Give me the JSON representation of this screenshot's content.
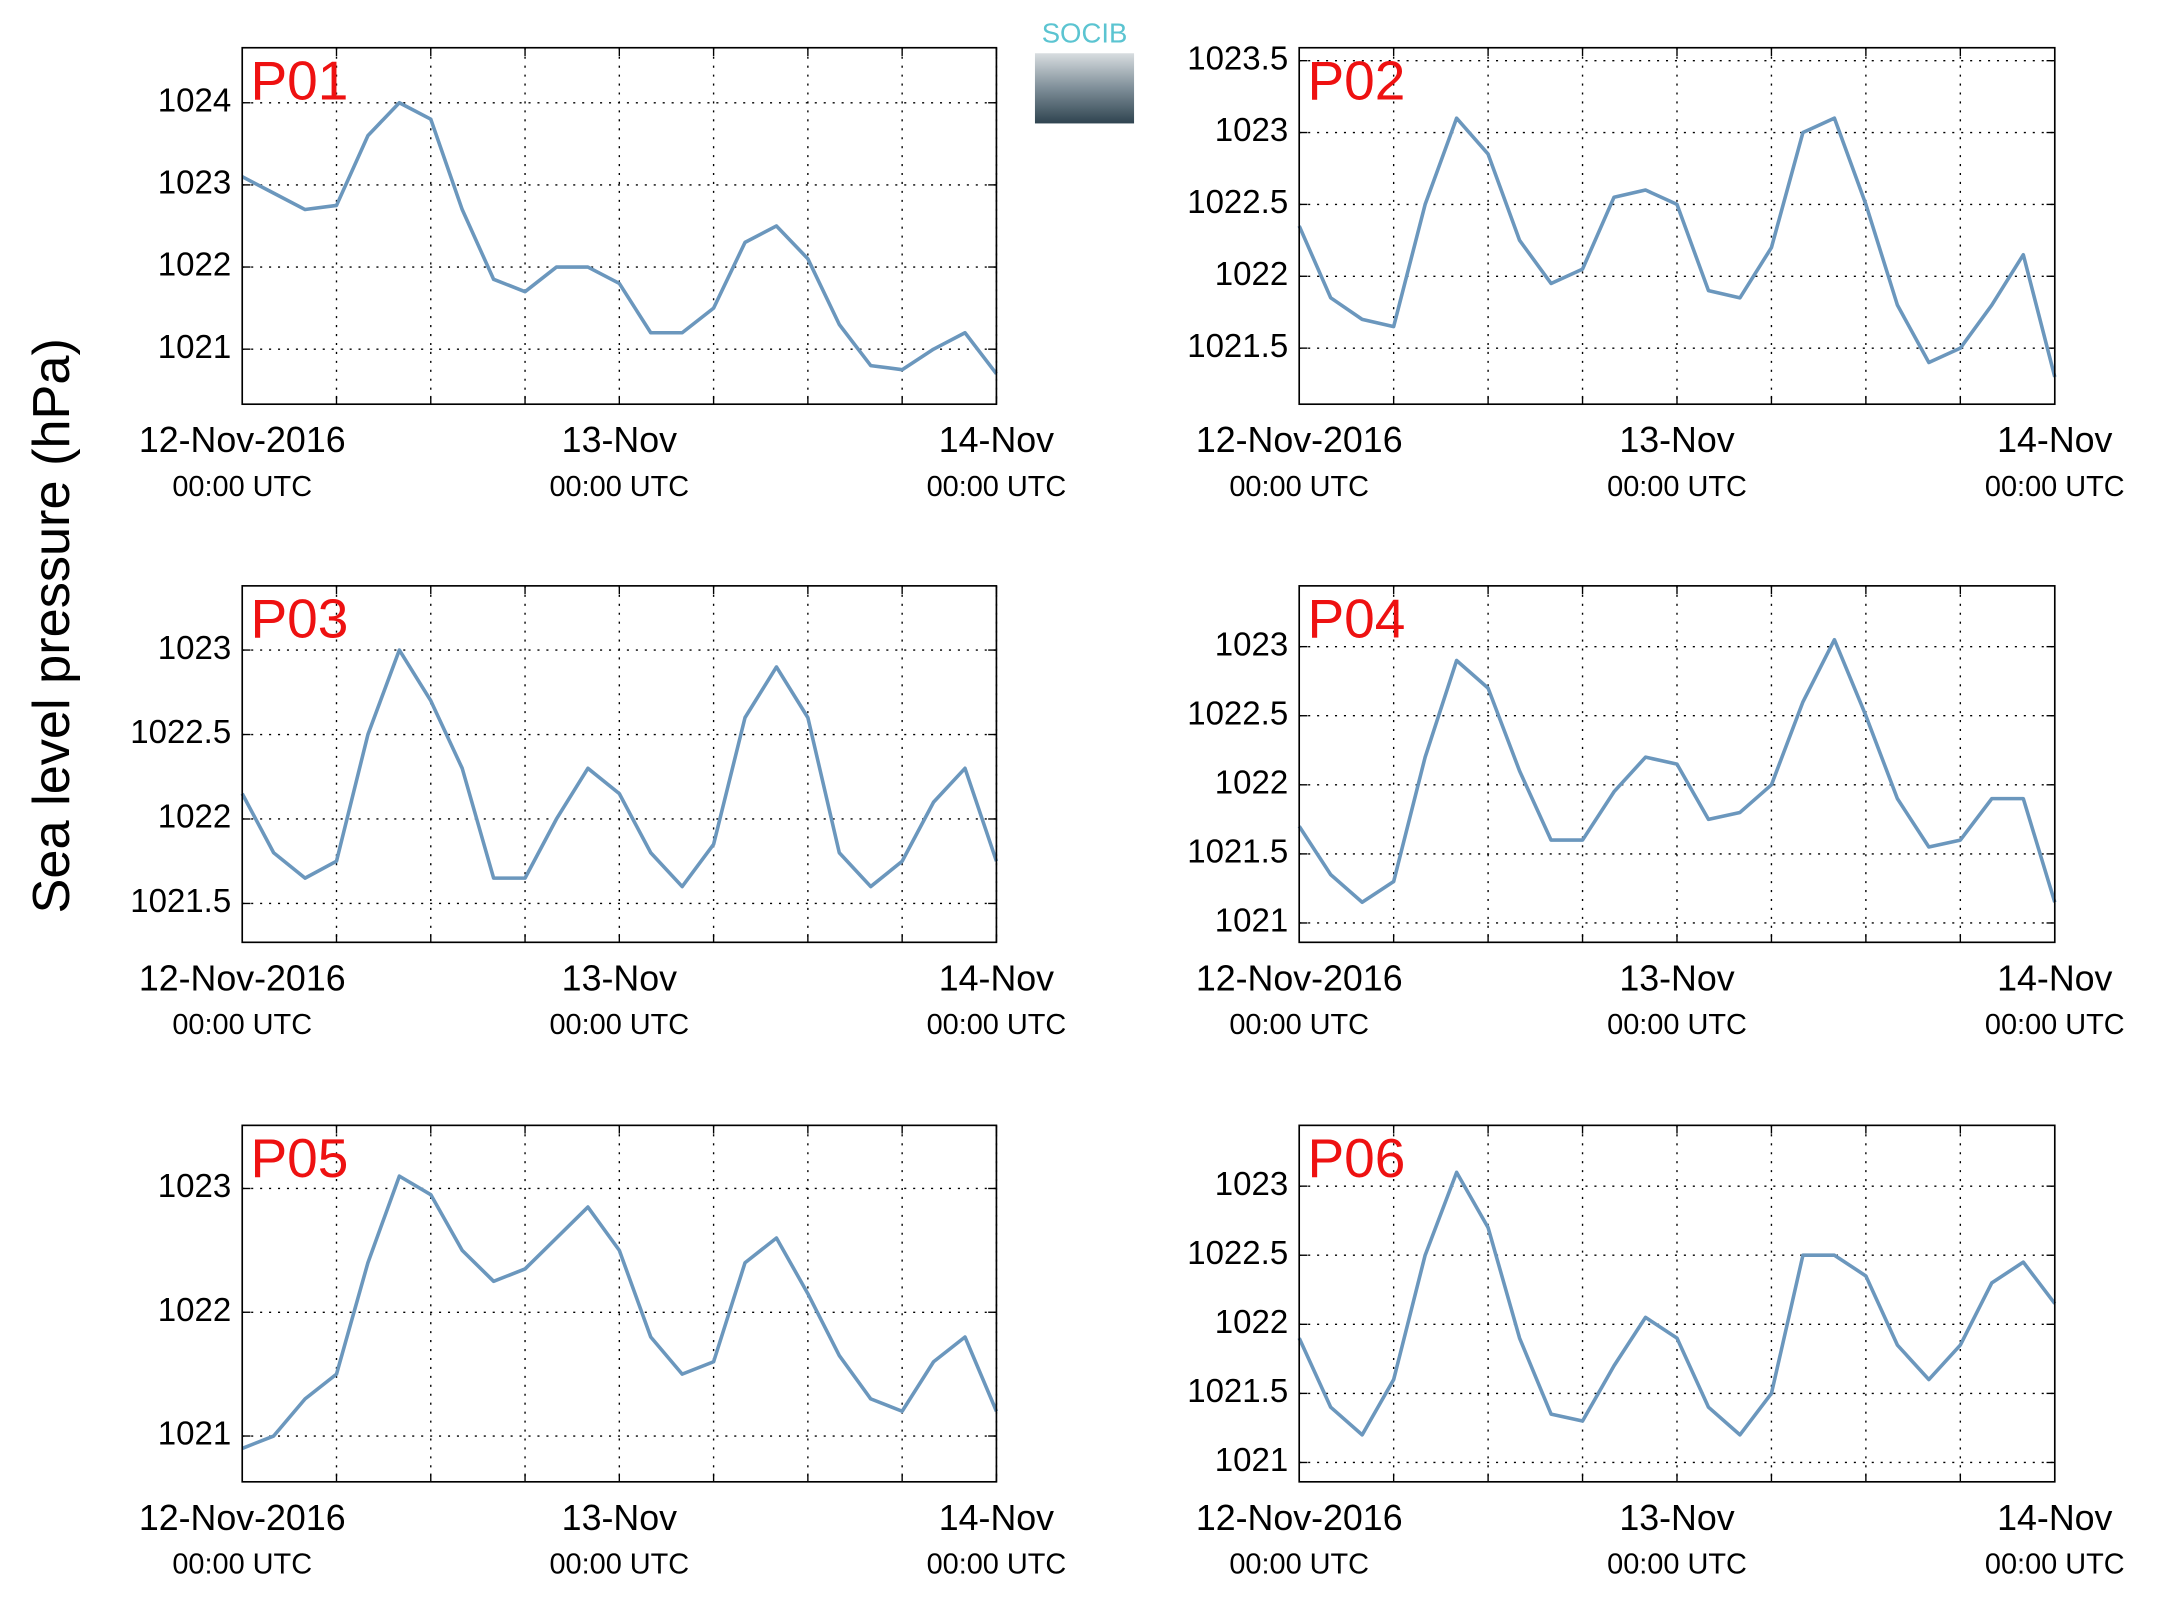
{
  "ylabel": "Sea level pressure (hPa)",
  "logo": "SOCIB",
  "chart_data": [
    {
      "type": "line",
      "title": "P01",
      "color": "#6b97bd",
      "grid": true,
      "xlim": [
        "2016-11-12 00:00",
        "2016-11-14 00:00"
      ],
      "xticks": [
        {
          "value": "2016-11-12 00:00",
          "label": "12-Nov-2016",
          "sublabel": "00:00 UTC"
        },
        {
          "value": "2016-11-12 06:00",
          "label": null
        },
        {
          "value": "2016-11-12 12:00",
          "label": null
        },
        {
          "value": "2016-11-12 18:00",
          "label": null
        },
        {
          "value": "2016-11-13 00:00",
          "label": "13-Nov",
          "sublabel": "00:00 UTC"
        },
        {
          "value": "2016-11-13 06:00",
          "label": null
        },
        {
          "value": "2016-11-13 12:00",
          "label": null
        },
        {
          "value": "2016-11-13 18:00",
          "label": null
        },
        {
          "value": "2016-11-14 00:00",
          "label": "14-Nov",
          "sublabel": "00:00 UTC"
        }
      ],
      "ylim": [
        1020.33,
        1024.67
      ],
      "yticks": [
        1021,
        1022,
        1023,
        1024
      ],
      "x": [
        "2016-11-12 00:00",
        "2016-11-12 02:00",
        "2016-11-12 04:00",
        "2016-11-12 06:00",
        "2016-11-12 08:00",
        "2016-11-12 10:00",
        "2016-11-12 12:00",
        "2016-11-12 14:00",
        "2016-11-12 16:00",
        "2016-11-12 18:00",
        "2016-11-12 20:00",
        "2016-11-12 22:00",
        "2016-11-13 00:00",
        "2016-11-13 02:00",
        "2016-11-13 04:00",
        "2016-11-13 06:00",
        "2016-11-13 08:00",
        "2016-11-13 10:00",
        "2016-11-13 12:00",
        "2016-11-13 14:00",
        "2016-11-13 16:00",
        "2016-11-13 18:00",
        "2016-11-13 20:00",
        "2016-11-13 22:00",
        "2016-11-14 00:00"
      ],
      "values": [
        1023.1,
        1022.9,
        1022.7,
        1022.75,
        1023.6,
        1024.0,
        1023.8,
        1022.7,
        1021.85,
        1021.7,
        1022.0,
        1022.0,
        1021.8,
        1021.2,
        1021.2,
        1021.5,
        1022.3,
        1022.5,
        1022.1,
        1021.3,
        1020.8,
        1020.75,
        1021.0,
        1021.2,
        1020.7
      ]
    },
    {
      "type": "line",
      "title": "P02",
      "color": "#6b97bd",
      "grid": true,
      "xlim": [
        "2016-11-12 00:00",
        "2016-11-14 00:00"
      ],
      "xticks": [
        {
          "value": "2016-11-12 00:00",
          "label": "12-Nov-2016",
          "sublabel": "00:00 UTC"
        },
        {
          "value": "2016-11-12 06:00",
          "label": null
        },
        {
          "value": "2016-11-12 12:00",
          "label": null
        },
        {
          "value": "2016-11-12 18:00",
          "label": null
        },
        {
          "value": "2016-11-13 00:00",
          "label": "13-Nov",
          "sublabel": "00:00 UTC"
        },
        {
          "value": "2016-11-13 06:00",
          "label": null
        },
        {
          "value": "2016-11-13 12:00",
          "label": null
        },
        {
          "value": "2016-11-13 18:00",
          "label": null
        },
        {
          "value": "2016-11-14 00:00",
          "label": "14-Nov",
          "sublabel": "00:00 UTC"
        }
      ],
      "ylim": [
        1021.11,
        1023.59
      ],
      "yticks": [
        1021.5,
        1022,
        1022.5,
        1023,
        1023.5
      ],
      "x": [
        "2016-11-12 00:00",
        "2016-11-12 02:00",
        "2016-11-12 04:00",
        "2016-11-12 06:00",
        "2016-11-12 08:00",
        "2016-11-12 10:00",
        "2016-11-12 12:00",
        "2016-11-12 14:00",
        "2016-11-12 16:00",
        "2016-11-12 18:00",
        "2016-11-12 20:00",
        "2016-11-12 22:00",
        "2016-11-13 00:00",
        "2016-11-13 02:00",
        "2016-11-13 04:00",
        "2016-11-13 06:00",
        "2016-11-13 08:00",
        "2016-11-13 10:00",
        "2016-11-13 12:00",
        "2016-11-13 14:00",
        "2016-11-13 16:00",
        "2016-11-13 18:00",
        "2016-11-13 20:00",
        "2016-11-13 22:00",
        "2016-11-14 00:00"
      ],
      "values": [
        1022.35,
        1021.85,
        1021.7,
        1021.65,
        1022.5,
        1023.1,
        1022.85,
        1022.25,
        1021.95,
        1022.05,
        1022.55,
        1022.6,
        1022.5,
        1021.9,
        1021.85,
        1022.2,
        1023.0,
        1023.1,
        1022.5,
        1021.8,
        1021.4,
        1021.5,
        1021.8,
        1022.15,
        1021.3
      ]
    },
    {
      "type": "line",
      "title": "P03",
      "color": "#6b97bd",
      "grid": true,
      "xlim": [
        "2016-11-12 00:00",
        "2016-11-14 00:00"
      ],
      "xticks": [
        {
          "value": "2016-11-12 00:00",
          "label": "12-Nov-2016",
          "sublabel": "00:00 UTC"
        },
        {
          "value": "2016-11-12 06:00",
          "label": null
        },
        {
          "value": "2016-11-12 12:00",
          "label": null
        },
        {
          "value": "2016-11-12 18:00",
          "label": null
        },
        {
          "value": "2016-11-13 00:00",
          "label": "13-Nov",
          "sublabel": "00:00 UTC"
        },
        {
          "value": "2016-11-13 06:00",
          "label": null
        },
        {
          "value": "2016-11-13 12:00",
          "label": null
        },
        {
          "value": "2016-11-13 18:00",
          "label": null
        },
        {
          "value": "2016-11-14 00:00",
          "label": "14-Nov",
          "sublabel": "00:00 UTC"
        }
      ],
      "ylim": [
        1021.27,
        1023.38
      ],
      "yticks": [
        1021.5,
        1022,
        1022.5,
        1023
      ],
      "x": [
        "2016-11-12 00:00",
        "2016-11-12 02:00",
        "2016-11-12 04:00",
        "2016-11-12 06:00",
        "2016-11-12 08:00",
        "2016-11-12 10:00",
        "2016-11-12 12:00",
        "2016-11-12 14:00",
        "2016-11-12 16:00",
        "2016-11-12 18:00",
        "2016-11-12 20:00",
        "2016-11-12 22:00",
        "2016-11-13 00:00",
        "2016-11-13 02:00",
        "2016-11-13 04:00",
        "2016-11-13 06:00",
        "2016-11-13 08:00",
        "2016-11-13 10:00",
        "2016-11-13 12:00",
        "2016-11-13 14:00",
        "2016-11-13 16:00",
        "2016-11-13 18:00",
        "2016-11-13 20:00",
        "2016-11-13 22:00",
        "2016-11-14 00:00"
      ],
      "values": [
        1022.15,
        1021.8,
        1021.65,
        1021.75,
        1022.5,
        1023.0,
        1022.7,
        1022.3,
        1021.65,
        1021.65,
        1022.0,
        1022.3,
        1022.15,
        1021.8,
        1021.6,
        1021.85,
        1022.6,
        1022.9,
        1022.6,
        1021.8,
        1021.6,
        1021.75,
        1022.1,
        1022.3,
        1021.75
      ]
    },
    {
      "type": "line",
      "title": "P04",
      "color": "#6b97bd",
      "grid": true,
      "xlim": [
        "2016-11-12 00:00",
        "2016-11-14 00:00"
      ],
      "xticks": [
        {
          "value": "2016-11-12 00:00",
          "label": "12-Nov-2016",
          "sublabel": "00:00 UTC"
        },
        {
          "value": "2016-11-12 06:00",
          "label": null
        },
        {
          "value": "2016-11-12 12:00",
          "label": null
        },
        {
          "value": "2016-11-12 18:00",
          "label": null
        },
        {
          "value": "2016-11-13 00:00",
          "label": "13-Nov",
          "sublabel": "00:00 UTC"
        },
        {
          "value": "2016-11-13 06:00",
          "label": null
        },
        {
          "value": "2016-11-13 12:00",
          "label": null
        },
        {
          "value": "2016-11-13 18:00",
          "label": null
        },
        {
          "value": "2016-11-14 00:00",
          "label": "14-Nov",
          "sublabel": "00:00 UTC"
        }
      ],
      "ylim": [
        1020.86,
        1023.44
      ],
      "yticks": [
        1021,
        1021.5,
        1022,
        1022.5,
        1023
      ],
      "x": [
        "2016-11-12 00:00",
        "2016-11-12 02:00",
        "2016-11-12 04:00",
        "2016-11-12 06:00",
        "2016-11-12 08:00",
        "2016-11-12 10:00",
        "2016-11-12 12:00",
        "2016-11-12 14:00",
        "2016-11-12 16:00",
        "2016-11-12 18:00",
        "2016-11-12 20:00",
        "2016-11-12 22:00",
        "2016-11-13 00:00",
        "2016-11-13 02:00",
        "2016-11-13 04:00",
        "2016-11-13 06:00",
        "2016-11-13 08:00",
        "2016-11-13 10:00",
        "2016-11-13 12:00",
        "2016-11-13 14:00",
        "2016-11-13 16:00",
        "2016-11-13 18:00",
        "2016-11-13 20:00",
        "2016-11-13 22:00",
        "2016-11-14 00:00"
      ],
      "values": [
        1021.7,
        1021.35,
        1021.15,
        1021.3,
        1022.2,
        1022.9,
        1022.7,
        1022.1,
        1021.6,
        1021.6,
        1021.95,
        1022.2,
        1022.15,
        1021.75,
        1021.8,
        1022.0,
        1022.6,
        1023.05,
        1022.5,
        1021.9,
        1021.55,
        1021.6,
        1021.9,
        1021.9,
        1021.15
      ]
    },
    {
      "type": "line",
      "title": "P05",
      "color": "#6b97bd",
      "grid": true,
      "xlim": [
        "2016-11-12 00:00",
        "2016-11-14 00:00"
      ],
      "xticks": [
        {
          "value": "2016-11-12 00:00",
          "label": "12-Nov-2016",
          "sublabel": "00:00 UTC"
        },
        {
          "value": "2016-11-12 06:00",
          "label": null
        },
        {
          "value": "2016-11-12 12:00",
          "label": null
        },
        {
          "value": "2016-11-12 18:00",
          "label": null
        },
        {
          "value": "2016-11-13 00:00",
          "label": "13-Nov",
          "sublabel": "00:00 UTC"
        },
        {
          "value": "2016-11-13 06:00",
          "label": null
        },
        {
          "value": "2016-11-13 12:00",
          "label": null
        },
        {
          "value": "2016-11-13 18:00",
          "label": null
        },
        {
          "value": "2016-11-14 00:00",
          "label": "14-Nov",
          "sublabel": "00:00 UTC"
        }
      ],
      "ylim": [
        1020.63,
        1023.51
      ],
      "yticks": [
        1021,
        1022,
        1023
      ],
      "x": [
        "2016-11-12 00:00",
        "2016-11-12 02:00",
        "2016-11-12 04:00",
        "2016-11-12 06:00",
        "2016-11-12 08:00",
        "2016-11-12 10:00",
        "2016-11-12 12:00",
        "2016-11-12 14:00",
        "2016-11-12 16:00",
        "2016-11-12 18:00",
        "2016-11-12 20:00",
        "2016-11-12 22:00",
        "2016-11-13 00:00",
        "2016-11-13 02:00",
        "2016-11-13 04:00",
        "2016-11-13 06:00",
        "2016-11-13 08:00",
        "2016-11-13 10:00",
        "2016-11-13 12:00",
        "2016-11-13 14:00",
        "2016-11-13 16:00",
        "2016-11-13 18:00",
        "2016-11-13 20:00",
        "2016-11-13 22:00",
        "2016-11-14 00:00"
      ],
      "values": [
        1020.9,
        1021.0,
        1021.3,
        1021.5,
        1022.4,
        1023.1,
        1022.95,
        1022.5,
        1022.25,
        1022.35,
        1022.6,
        1022.85,
        1022.5,
        1021.8,
        1021.5,
        1021.6,
        1022.4,
        1022.6,
        1022.15,
        1021.65,
        1021.3,
        1021.2,
        1021.6,
        1021.8,
        1021.2
      ]
    },
    {
      "type": "line",
      "title": "P06",
      "color": "#6b97bd",
      "grid": true,
      "xlim": [
        "2016-11-12 00:00",
        "2016-11-14 00:00"
      ],
      "xticks": [
        {
          "value": "2016-11-12 00:00",
          "label": "12-Nov-2016",
          "sublabel": "00:00 UTC"
        },
        {
          "value": "2016-11-12 06:00",
          "label": null
        },
        {
          "value": "2016-11-12 12:00",
          "label": null
        },
        {
          "value": "2016-11-12 18:00",
          "label": null
        },
        {
          "value": "2016-11-13 00:00",
          "label": "13-Nov",
          "sublabel": "00:00 UTC"
        },
        {
          "value": "2016-11-13 06:00",
          "label": null
        },
        {
          "value": "2016-11-13 12:00",
          "label": null
        },
        {
          "value": "2016-11-13 18:00",
          "label": null
        },
        {
          "value": "2016-11-14 00:00",
          "label": "14-Nov",
          "sublabel": "00:00 UTC"
        }
      ],
      "ylim": [
        1020.86,
        1023.44
      ],
      "yticks": [
        1021,
        1021.5,
        1022,
        1022.5,
        1023
      ],
      "x": [
        "2016-11-12 00:00",
        "2016-11-12 02:00",
        "2016-11-12 04:00",
        "2016-11-12 06:00",
        "2016-11-12 08:00",
        "2016-11-12 10:00",
        "2016-11-12 12:00",
        "2016-11-12 14:00",
        "2016-11-12 16:00",
        "2016-11-12 18:00",
        "2016-11-12 20:00",
        "2016-11-12 22:00",
        "2016-11-13 00:00",
        "2016-11-13 02:00",
        "2016-11-13 04:00",
        "2016-11-13 06:00",
        "2016-11-13 08:00",
        "2016-11-13 10:00",
        "2016-11-13 12:00",
        "2016-11-13 14:00",
        "2016-11-13 16:00",
        "2016-11-13 18:00",
        "2016-11-13 20:00",
        "2016-11-13 22:00",
        "2016-11-14 00:00"
      ],
      "values": [
        1021.9,
        1021.4,
        1021.2,
        1021.6,
        1022.5,
        1023.1,
        1022.7,
        1021.9,
        1021.35,
        1021.3,
        1021.7,
        1022.05,
        1021.9,
        1021.4,
        1021.2,
        1021.5,
        1022.5,
        1022.5,
        1022.35,
        1021.85,
        1021.6,
        1021.85,
        1022.3,
        1022.45,
        1022.15
      ]
    }
  ]
}
